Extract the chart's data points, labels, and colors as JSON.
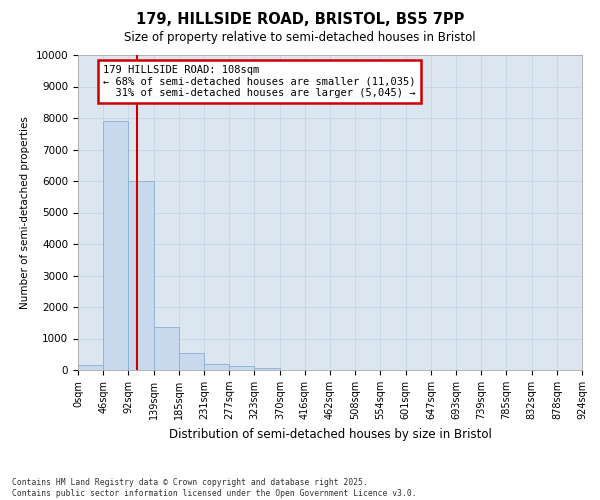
{
  "title_line1": "179, HILLSIDE ROAD, BRISTOL, BS5 7PP",
  "title_line2": "Size of property relative to semi-detached houses in Bristol",
  "xlabel": "Distribution of semi-detached houses by size in Bristol",
  "ylabel": "Number of semi-detached properties",
  "bins": [
    "0sqm",
    "46sqm",
    "92sqm",
    "139sqm",
    "185sqm",
    "231sqm",
    "277sqm",
    "323sqm",
    "370sqm",
    "416sqm",
    "462sqm",
    "508sqm",
    "554sqm",
    "601sqm",
    "647sqm",
    "693sqm",
    "739sqm",
    "785sqm",
    "832sqm",
    "878sqm",
    "924sqm"
  ],
  "bin_edges": [
    0,
    46,
    92,
    139,
    185,
    231,
    277,
    323,
    370,
    416,
    462,
    508,
    554,
    601,
    647,
    693,
    739,
    785,
    832,
    878,
    924
  ],
  "values": [
    150,
    7900,
    6000,
    1350,
    550,
    200,
    120,
    50,
    8,
    0,
    0,
    0,
    0,
    0,
    0,
    0,
    0,
    0,
    0,
    0
  ],
  "bar_color": "#c9d9ed",
  "bar_edge_color": "#8bafd4",
  "property_size": 108,
  "pct_smaller": 68,
  "pct_smaller_count": 11035,
  "pct_larger": 31,
  "pct_larger_count": 5045,
  "vline_color": "#cc0000",
  "annotation_box_color": "#cc0000",
  "ylim": [
    0,
    10000
  ],
  "yticks": [
    0,
    1000,
    2000,
    3000,
    4000,
    5000,
    6000,
    7000,
    8000,
    9000,
    10000
  ],
  "grid_color": "#c8d4e8",
  "background_color": "#dce6f0",
  "footer_line1": "Contains HM Land Registry data © Crown copyright and database right 2025.",
  "footer_line2": "Contains public sector information licensed under the Open Government Licence v3.0."
}
